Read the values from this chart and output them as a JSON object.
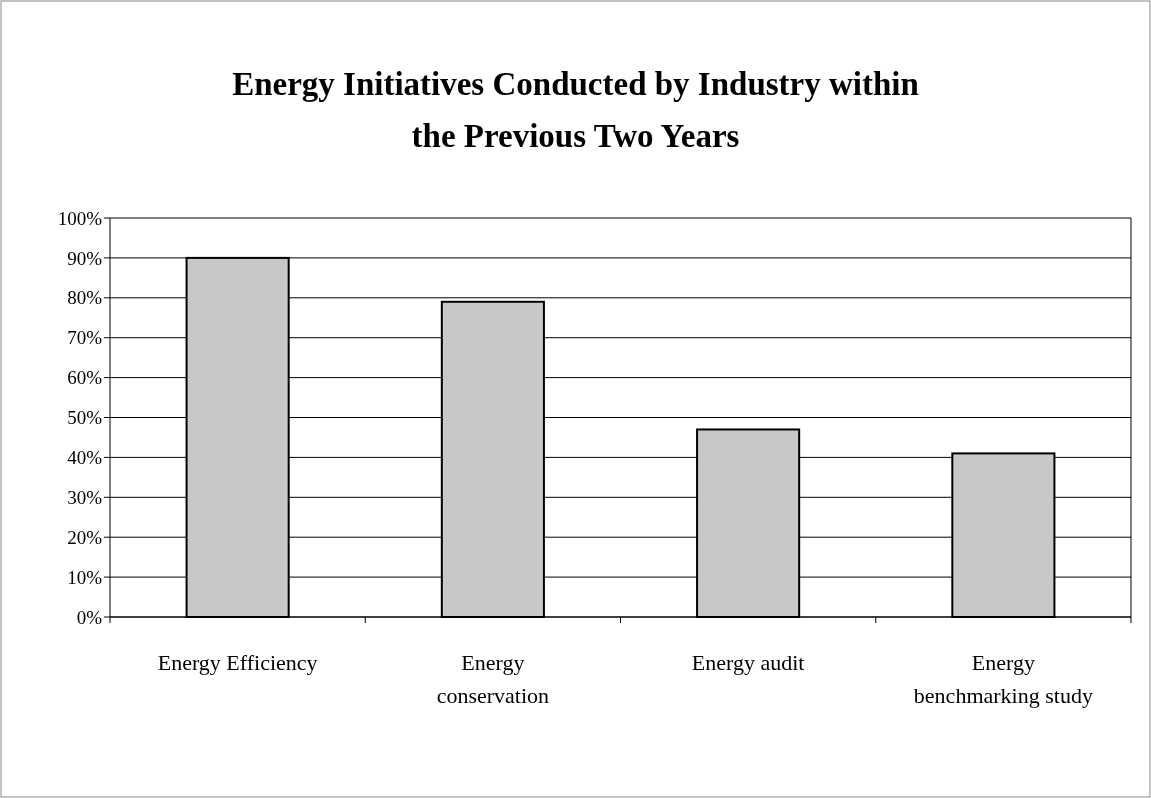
{
  "chart_data": {
    "type": "bar",
    "title": "Energy Initiatives Conducted by Industry within the Previous Two Years",
    "categories": [
      "Energy Efficiency",
      "Energy conservation",
      "Energy audit",
      "Energy benchmarking study"
    ],
    "values": [
      90,
      79,
      47,
      41
    ],
    "color": "#c8c8c8",
    "ylim": [
      0,
      100
    ],
    "yticks": [
      {
        "value": 0,
        "label": "0%"
      },
      {
        "value": 10,
        "label": "10%"
      },
      {
        "value": 20,
        "label": "20%"
      },
      {
        "value": 30,
        "label": "30%"
      },
      {
        "value": 40,
        "label": "40%"
      },
      {
        "value": 50,
        "label": "50%"
      },
      {
        "value": 60,
        "label": "60%"
      },
      {
        "value": 70,
        "label": "70%"
      },
      {
        "value": 80,
        "label": "80%"
      },
      {
        "value": 90,
        "label": "90%"
      },
      {
        "value": 100,
        "label": "100%"
      }
    ],
    "grid": "y"
  }
}
